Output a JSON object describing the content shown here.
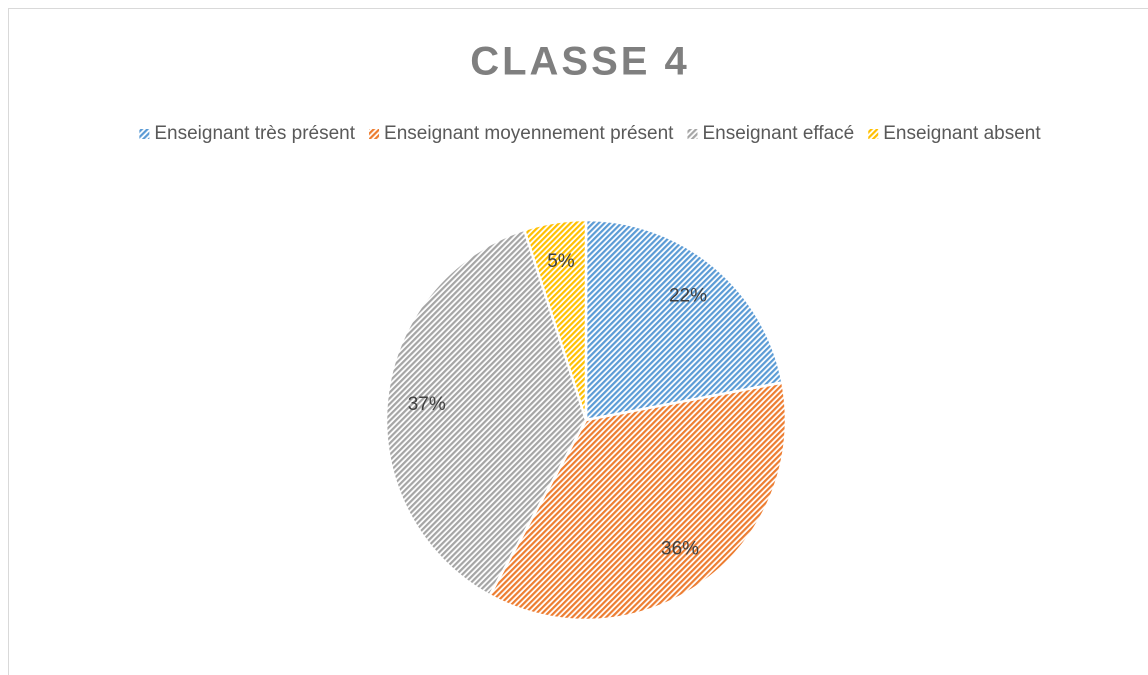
{
  "chart_data": {
    "type": "pie",
    "title": "CLASSE 4",
    "categories": [
      "Enseignant très présent",
      "Enseignant moyennement présent",
      "Enseignant effacé",
      "Enseignant absent"
    ],
    "values": [
      22,
      36,
      37,
      5
    ],
    "value_labels": [
      "22%",
      "36%",
      "37%",
      "5%"
    ],
    "colors": [
      "#5b9bd5",
      "#ed7d31",
      "#a5a5a5",
      "#ffc000"
    ],
    "legend": "top"
  }
}
